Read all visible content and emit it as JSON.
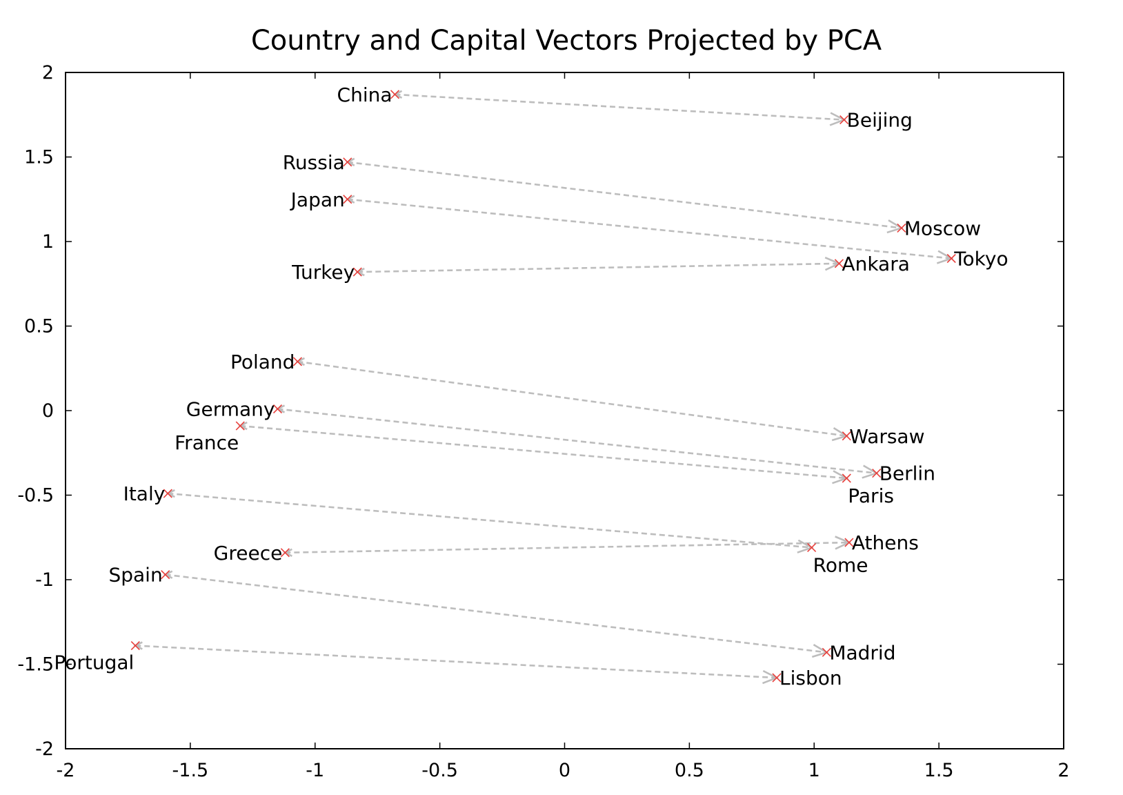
{
  "chart_data": {
    "type": "scatter",
    "title": "Country and Capital Vectors Projected by PCA",
    "xlabel": "",
    "ylabel": "",
    "xlim": [
      -2,
      2
    ],
    "ylim": [
      -2,
      2
    ],
    "x_ticks": [
      -2,
      -1.5,
      -1,
      -0.5,
      0,
      0.5,
      1,
      1.5,
      2
    ],
    "y_ticks": [
      -2,
      -1.5,
      -1,
      -0.5,
      0,
      0.5,
      1,
      1.5,
      2
    ],
    "x_tick_labels": [
      "-2",
      "-1.5",
      "-1",
      "-0.5",
      "0",
      "0.5",
      "1",
      "1.5",
      "2"
    ],
    "y_tick_labels": [
      "-2",
      "-1.5",
      "-1",
      "-0.5",
      "0",
      "0.5",
      "1",
      "1.5",
      "2"
    ],
    "grid": false,
    "marker_color": "#e8403c",
    "arrow_color": "#bdbdbd",
    "pairs": [
      {
        "country": "China",
        "country_xy": [
          -0.68,
          1.87
        ],
        "capital": "Beijing",
        "capital_xy": [
          1.12,
          1.72
        ]
      },
      {
        "country": "Russia",
        "country_xy": [
          -0.87,
          1.47
        ],
        "capital": "Moscow",
        "capital_xy": [
          1.35,
          1.08
        ]
      },
      {
        "country": "Japan",
        "country_xy": [
          -0.87,
          1.25
        ],
        "capital": "Tokyo",
        "capital_xy": [
          1.55,
          0.9
        ]
      },
      {
        "country": "Turkey",
        "country_xy": [
          -0.83,
          0.82
        ],
        "capital": "Ankara",
        "capital_xy": [
          1.1,
          0.87
        ]
      },
      {
        "country": "Poland",
        "country_xy": [
          -1.07,
          0.29
        ],
        "capital": "Warsaw",
        "capital_xy": [
          1.13,
          -0.15
        ]
      },
      {
        "country": "Germany",
        "country_xy": [
          -1.15,
          0.01
        ],
        "capital": "Berlin",
        "capital_xy": [
          1.25,
          -0.37
        ]
      },
      {
        "country": "France",
        "country_xy": [
          -1.3,
          -0.09
        ],
        "capital": "Paris",
        "capital_xy": [
          1.13,
          -0.4
        ]
      },
      {
        "country": "Italy",
        "country_xy": [
          -1.59,
          -0.49
        ],
        "capital": "Rome",
        "capital_xy": [
          0.99,
          -0.81
        ]
      },
      {
        "country": "Greece",
        "country_xy": [
          -1.12,
          -0.84
        ],
        "capital": "Athens",
        "capital_xy": [
          1.14,
          -0.78
        ]
      },
      {
        "country": "Spain",
        "country_xy": [
          -1.6,
          -0.97
        ],
        "capital": "Madrid",
        "capital_xy": [
          1.05,
          -1.43
        ]
      },
      {
        "country": "Portugal",
        "country_xy": [
          -1.72,
          -1.39
        ],
        "capital": "Lisbon",
        "capital_xy": [
          0.85,
          -1.58
        ]
      }
    ]
  }
}
